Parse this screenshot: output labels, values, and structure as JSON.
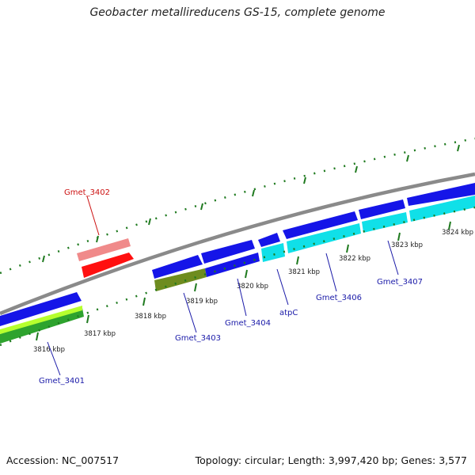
{
  "title": "Geobacter metallireducens GS-15, complete genome",
  "footer": {
    "accession": "Accession: NC_007517",
    "topology": "Topology: circular; Length: 3,997,420 bp; Genes: 3,577"
  },
  "colors": {
    "backbone": "#8a8a8a",
    "tick": "#1f7a1f",
    "label_blue": "#1a1aa8",
    "label_red": "#cc1111"
  },
  "ticks": [
    {
      "label": "3816 kbp"
    },
    {
      "label": "3817 kbp"
    },
    {
      "label": "3818 kbp"
    },
    {
      "label": "3819 kbp"
    },
    {
      "label": "3820 kbp"
    },
    {
      "label": "3821 kbp"
    },
    {
      "label": "3822 kbp"
    },
    {
      "label": "3823 kbp"
    },
    {
      "label": "3824 kbp"
    }
  ],
  "genes": [
    {
      "label": "Gmet_3401",
      "color": "#1a1aa8"
    },
    {
      "label": "Gmet_3402",
      "color": "#cc1111"
    },
    {
      "label": "Gmet_3403",
      "color": "#1a1aa8"
    },
    {
      "label": "Gmet_3404",
      "color": "#1a1aa8"
    },
    {
      "label": "atpC",
      "color": "#1a1aa8"
    },
    {
      "label": "Gmet_3406",
      "color": "#1a1aa8"
    },
    {
      "label": "Gmet_3407",
      "color": "#1a1aa8"
    }
  ]
}
